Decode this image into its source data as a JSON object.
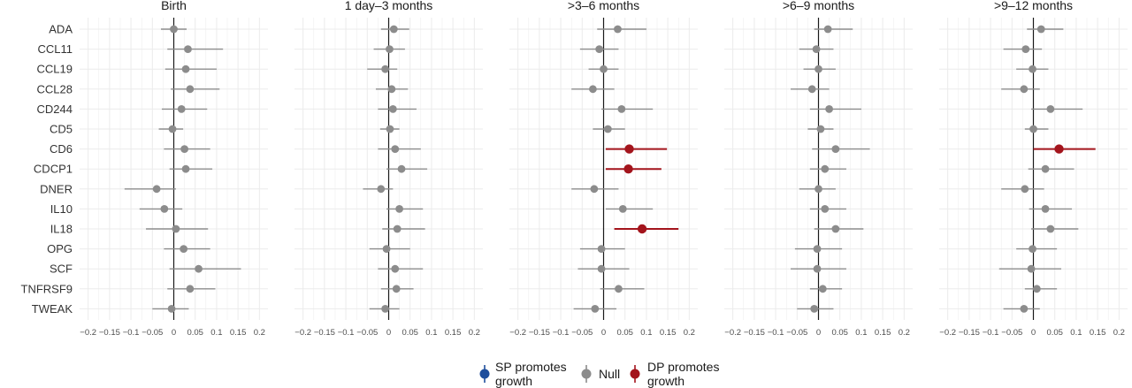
{
  "colors": {
    "sp": "#1f4e9c",
    "null": "#8c8c8c",
    "dp": "#a3141c",
    "grid": "#ebebeb",
    "zero_line": "#1a1a1a"
  },
  "legend": {
    "items": [
      {
        "key": "sp",
        "label_lines": [
          "SP promotes",
          "growth"
        ]
      },
      {
        "key": "null",
        "label_lines": [
          "Null"
        ]
      },
      {
        "key": "dp",
        "label_lines": [
          "DP promotes",
          "growth"
        ]
      }
    ]
  },
  "chart_data": {
    "type": "forest",
    "categories": [
      "ADA",
      "CCL11",
      "CCL19",
      "CCL28",
      "CD244",
      "CD5",
      "CD6",
      "CDCP1",
      "DNER",
      "IL10",
      "IL18",
      "OPG",
      "SCF",
      "TNFRSF9",
      "TWEAK"
    ],
    "xlim": [
      -0.22,
      0.22
    ],
    "xticks": [
      -0.2,
      -0.15,
      -0.1,
      -0.05,
      0,
      0.05,
      0.1,
      0.15,
      0.2
    ],
    "xtick_labels": [
      "−0.2",
      "−0.15",
      "−0.1",
      "−0.05",
      "0",
      "0.05",
      "0.1",
      "0.15",
      "0.2"
    ],
    "grid": true,
    "legend_position": "bottom",
    "facets": [
      {
        "title": "Birth",
        "estimate": [
          0.0,
          0.033,
          0.028,
          0.038,
          0.018,
          -0.003,
          0.025,
          0.028,
          -0.04,
          -0.022,
          0.005,
          0.023,
          0.058,
          0.038,
          -0.005
        ],
        "lower": [
          -0.03,
          -0.015,
          -0.02,
          -0.007,
          -0.028,
          -0.035,
          -0.023,
          -0.01,
          -0.115,
          -0.08,
          -0.065,
          -0.023,
          -0.01,
          -0.015,
          -0.05
        ],
        "upper": [
          0.03,
          0.115,
          0.1,
          0.107,
          0.078,
          0.022,
          0.085,
          0.09,
          0.005,
          0.02,
          0.08,
          0.085,
          0.157,
          0.097,
          0.035
        ],
        "status": [
          "null",
          "null",
          "null",
          "null",
          "null",
          "null",
          "null",
          "null",
          "null",
          "null",
          "null",
          "null",
          "null",
          "null",
          "null"
        ]
      },
      {
        "title": "1 day–3 months",
        "estimate": [
          0.012,
          0.002,
          -0.008,
          0.007,
          0.01,
          0.003,
          0.015,
          0.03,
          -0.018,
          0.025,
          0.02,
          -0.005,
          0.015,
          0.018,
          -0.008
        ],
        "lower": [
          -0.018,
          -0.035,
          -0.05,
          -0.03,
          -0.025,
          -0.02,
          -0.025,
          -0.005,
          -0.06,
          -0.005,
          -0.015,
          -0.045,
          -0.025,
          -0.018,
          -0.045
        ],
        "upper": [
          0.048,
          0.038,
          0.02,
          0.045,
          0.065,
          0.025,
          0.075,
          0.09,
          0.01,
          0.08,
          0.085,
          0.05,
          0.08,
          0.058,
          0.025
        ],
        "status": [
          "null",
          "null",
          "null",
          "null",
          "null",
          "null",
          "null",
          "null",
          "null",
          "null",
          "null",
          "null",
          "null",
          "null",
          "null"
        ]
      },
      {
        "title": ">3–6 months",
        "estimate": [
          0.033,
          -0.01,
          0.0,
          -0.025,
          0.042,
          0.01,
          0.06,
          0.058,
          -0.022,
          0.045,
          0.09,
          -0.005,
          -0.005,
          0.035,
          -0.02
        ],
        "lower": [
          -0.015,
          -0.055,
          -0.035,
          -0.075,
          -0.005,
          -0.025,
          0.005,
          0.005,
          -0.075,
          0.005,
          0.025,
          -0.055,
          -0.06,
          -0.008,
          -0.07
        ],
        "upper": [
          0.1,
          0.035,
          0.035,
          0.025,
          0.115,
          0.05,
          0.148,
          0.135,
          0.035,
          0.115,
          0.175,
          0.05,
          0.06,
          0.095,
          0.03
        ],
        "status": [
          "null",
          "null",
          "null",
          "null",
          "null",
          "null",
          "dp",
          "dp",
          "null",
          "null",
          "dp",
          "null",
          "null",
          "null",
          "null"
        ]
      },
      {
        "title": ">6–9 months",
        "estimate": [
          0.022,
          -0.005,
          0.0,
          -0.015,
          0.025,
          0.005,
          0.04,
          0.015,
          0.0,
          0.015,
          0.04,
          -0.003,
          -0.003,
          0.01,
          -0.01
        ],
        "lower": [
          -0.01,
          -0.045,
          -0.035,
          -0.065,
          -0.02,
          -0.025,
          -0.015,
          -0.02,
          -0.045,
          -0.02,
          -0.01,
          -0.055,
          -0.065,
          -0.02,
          -0.05
        ],
        "upper": [
          0.08,
          0.035,
          0.04,
          0.025,
          0.1,
          0.035,
          0.12,
          0.065,
          0.04,
          0.065,
          0.105,
          0.055,
          0.065,
          0.055,
          0.035
        ],
        "status": [
          "null",
          "null",
          "null",
          "null",
          "null",
          "null",
          "null",
          "null",
          "null",
          "null",
          "null",
          "null",
          "null",
          "null",
          "null"
        ]
      },
      {
        "title": ">9–12 months",
        "estimate": [
          0.018,
          -0.018,
          -0.002,
          -0.022,
          0.04,
          0.0,
          0.06,
          0.028,
          -0.02,
          0.028,
          0.04,
          -0.002,
          -0.005,
          0.008,
          -0.022
        ],
        "lower": [
          -0.015,
          -0.07,
          -0.04,
          -0.075,
          -0.005,
          -0.02,
          0.0,
          -0.012,
          -0.075,
          -0.01,
          -0.005,
          -0.04,
          -0.08,
          -0.02,
          -0.07
        ],
        "upper": [
          0.07,
          0.02,
          0.035,
          0.015,
          0.115,
          0.035,
          0.145,
          0.095,
          0.025,
          0.09,
          0.105,
          0.055,
          0.065,
          0.055,
          0.015
        ],
        "status": [
          "null",
          "null",
          "null",
          "null",
          "null",
          "null",
          "dp",
          "null",
          "null",
          "null",
          "null",
          "null",
          "null",
          "null",
          "null"
        ]
      }
    ]
  }
}
